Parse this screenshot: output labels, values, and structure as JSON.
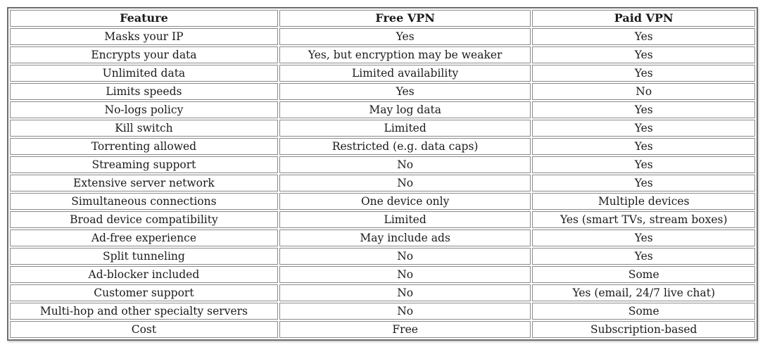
{
  "table": {
    "headers": [
      "Feature",
      "Free VPN",
      "Paid VPN"
    ],
    "rows": [
      [
        "Masks your IP",
        "Yes",
        "Yes"
      ],
      [
        "Encrypts your data",
        "Yes, but encryption may be weaker",
        "Yes"
      ],
      [
        "Unlimited data",
        "Limited availability",
        "Yes"
      ],
      [
        "Limits speeds",
        "Yes",
        "No"
      ],
      [
        "No-logs policy",
        "May log data",
        "Yes"
      ],
      [
        "Kill switch",
        "Limited",
        "Yes"
      ],
      [
        "Torrenting allowed",
        "Restricted (e.g. data caps)",
        "Yes"
      ],
      [
        "Streaming support",
        "No",
        "Yes"
      ],
      [
        "Extensive server network",
        "No",
        "Yes"
      ],
      [
        "Simultaneous connections",
        "One device only",
        "Multiple devices"
      ],
      [
        "Broad device compatibility",
        "Limited",
        "Yes (smart TVs, stream boxes)"
      ],
      [
        "Ad-free experience",
        "May include ads",
        "Yes"
      ],
      [
        "Split tunneling",
        "No",
        "Yes"
      ],
      [
        "Ad-blocker included",
        "No",
        "Some"
      ],
      [
        "Customer support",
        "No",
        "Yes (email, 24/7 live chat)"
      ],
      [
        "Multi-hop and other specialty servers",
        "No",
        "Some"
      ],
      [
        "Cost",
        "Free",
        "Subscription-based"
      ]
    ]
  },
  "colors": {
    "outer_border": "#6e6e6e",
    "cell_border": "#8a8a8a",
    "text": "#1b1b1b",
    "background": "#ffffff"
  }
}
